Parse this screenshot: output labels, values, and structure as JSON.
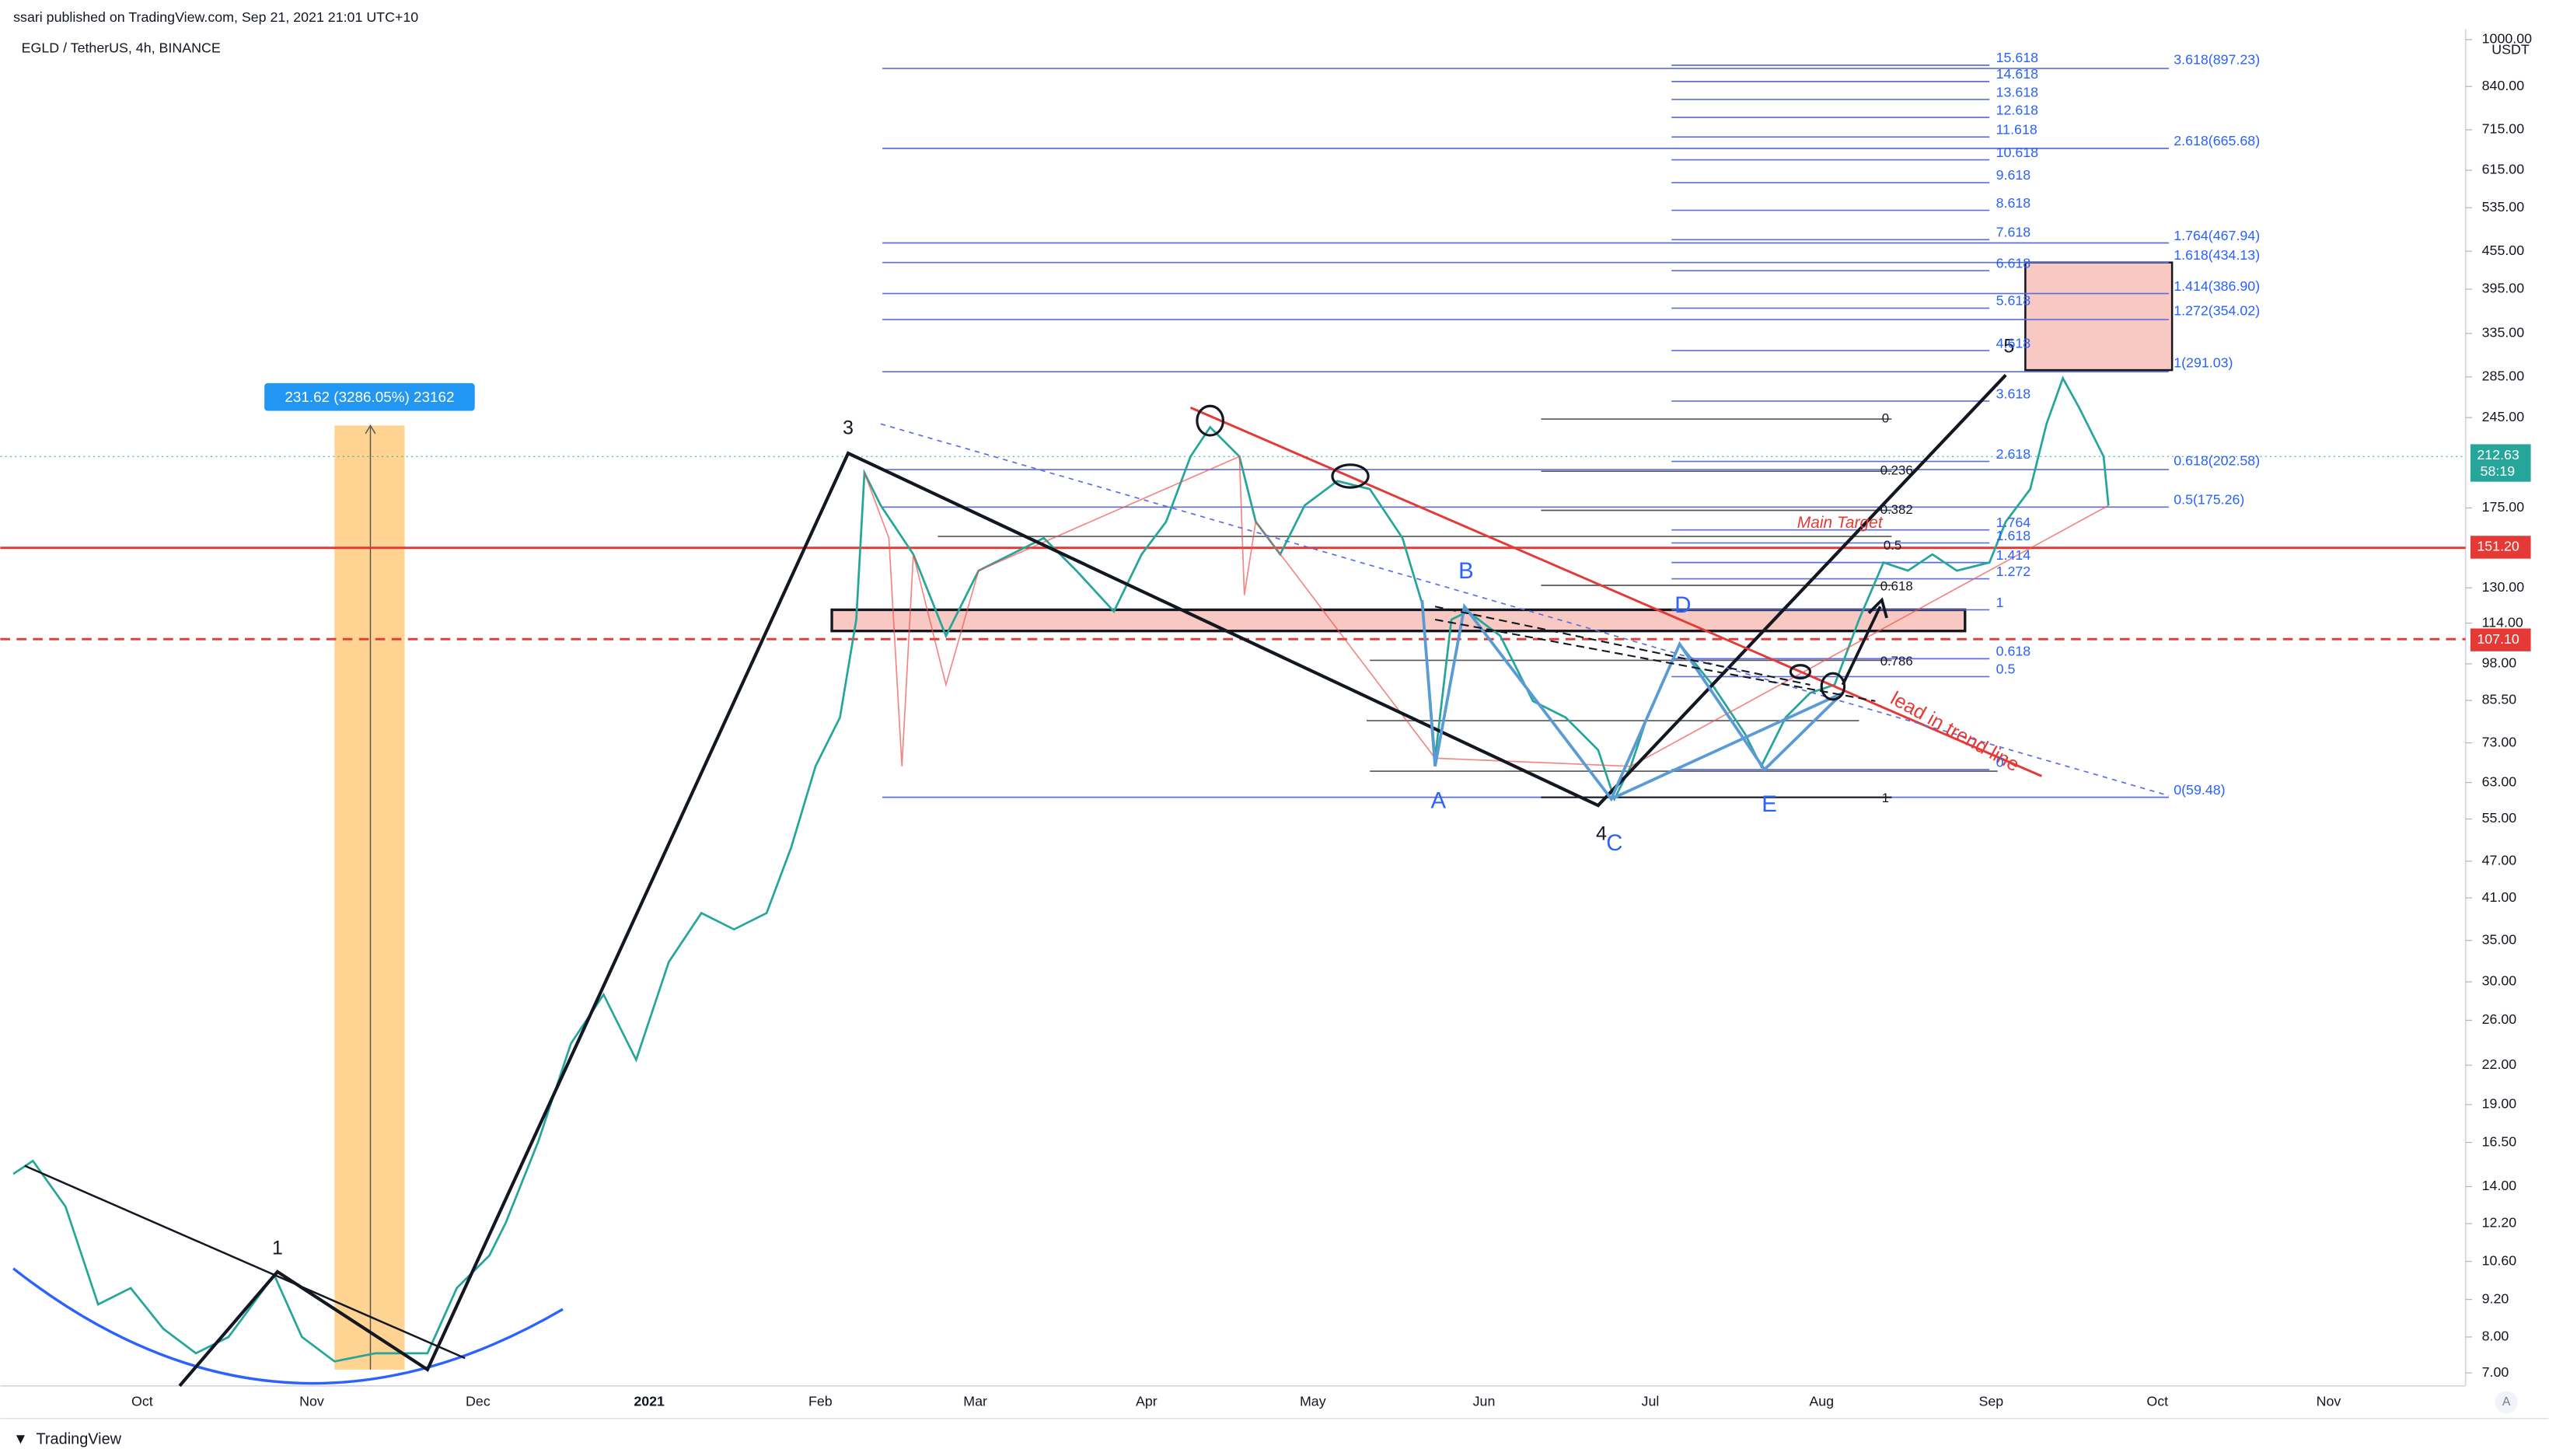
{
  "header": {
    "published": "ssari published on TradingView.com, Sep 21, 2021 21:01 UTC+10",
    "symbol": "EGLD / TetherUS, 4h, BINANCE"
  },
  "price_axis": {
    "unit": "USDT",
    "ticks": [
      {
        "value": 1000,
        "label": "1000.00"
      },
      {
        "value": 840,
        "label": "840.00"
      },
      {
        "value": 715,
        "label": "715.00"
      },
      {
        "value": 615,
        "label": "615.00"
      },
      {
        "value": 535,
        "label": "535.00"
      },
      {
        "value": 455,
        "label": "455.00"
      },
      {
        "value": 395,
        "label": "395.00"
      },
      {
        "value": 335,
        "label": "335.00"
      },
      {
        "value": 285,
        "label": "285.00"
      },
      {
        "value": 245,
        "label": "245.00"
      },
      {
        "value": 175,
        "label": "175.00"
      },
      {
        "value": 130,
        "label": "130.00"
      },
      {
        "value": 114,
        "label": "114.00"
      },
      {
        "value": 98,
        "label": "98.00"
      },
      {
        "value": 85.5,
        "label": "85.50"
      },
      {
        "value": 73,
        "label": "73.00"
      },
      {
        "value": 63,
        "label": "63.00"
      },
      {
        "value": 55,
        "label": "55.00"
      },
      {
        "value": 47,
        "label": "47.00"
      },
      {
        "value": 41,
        "label": "41.00"
      },
      {
        "value": 35,
        "label": "35.00"
      },
      {
        "value": 30,
        "label": "30.00"
      },
      {
        "value": 26,
        "label": "26.00"
      },
      {
        "value": 22,
        "label": "22.00"
      },
      {
        "value": 19,
        "label": "19.00"
      },
      {
        "value": 16.5,
        "label": "16.50"
      },
      {
        "value": 14,
        "label": "14.00"
      },
      {
        "value": 12.2,
        "label": "12.20"
      },
      {
        "value": 10.6,
        "label": "10.60"
      },
      {
        "value": 9.2,
        "label": "9.20"
      },
      {
        "value": 8,
        "label": "8.00"
      },
      {
        "value": 7,
        "label": "7.00"
      }
    ],
    "badges": [
      {
        "value": 212.63,
        "label": "212.63",
        "countdown": "58:19"
      },
      {
        "value": 151.2,
        "label": "151.20"
      },
      {
        "value": 107.1,
        "label": "107.10"
      }
    ]
  },
  "time_axis": [
    "Oct",
    "Nov",
    "Dec",
    "2021",
    "Feb",
    "Mar",
    "Apr",
    "May",
    "Jun",
    "Jul",
    "Aug",
    "Sep",
    "Oct",
    "Nov"
  ],
  "fib_extension": [
    "15.618",
    "14.618",
    "13.618",
    "12.618",
    "11.618",
    "10.618",
    "9.618",
    "8.618",
    "7.618",
    "6.618",
    "5.618",
    "4.618",
    "3.618",
    "2.618",
    "1.764",
    "1.618",
    "1.414",
    "1.272",
    "1",
    "0.618",
    "0.5",
    "0"
  ],
  "fib_targets": [
    "3.618(897.23)",
    "2.618(665.68)",
    "1.764(467.94)",
    "1.618(434.13)",
    "1.414(386.90)",
    "1.272(354.02)",
    "1(291.03)",
    "0.618(202.58)",
    "0.5(175.26)",
    "0(59.48)"
  ],
  "fib_retracement": [
    "0",
    "0.236",
    "0.382",
    "0.5",
    "0.618",
    "0.786",
    "1"
  ],
  "waves": [
    "1",
    "3",
    "4",
    "5",
    "A",
    "B",
    "C",
    "D",
    "E"
  ],
  "annotations": {
    "main_target": "Main Target",
    "trend_line": "lead in trend line",
    "measure": "231.62 (3286.05%) 23162"
  },
  "footer": {
    "brand": "TradingView",
    "auto": "A"
  }
}
